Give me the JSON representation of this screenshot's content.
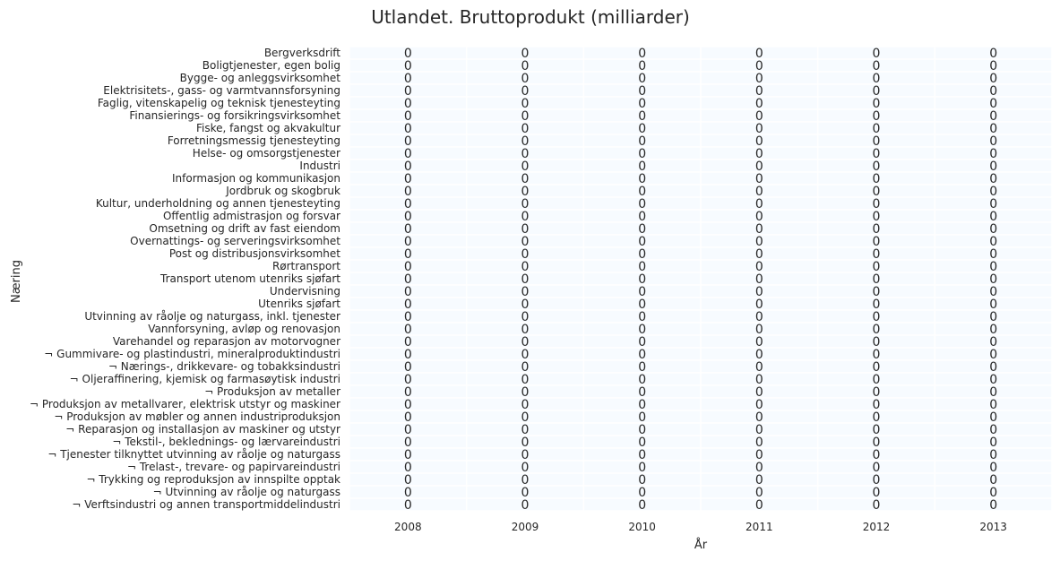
{
  "chart_data": {
    "type": "heatmap",
    "title": "Utlandet. Bruttoprodukt (milliarder)",
    "xlabel": "År",
    "ylabel": "Næring",
    "x": [
      "2008",
      "2009",
      "2010",
      "2011",
      "2012",
      "2013"
    ],
    "y": [
      "Bergverksdrift",
      "Boligtjenester, egen bolig",
      "Bygge- og anleggsvirksomhet",
      "Elektrisitets-, gass- og varmtvannsforsyning",
      "Faglig, vitenskapelig og teknisk tjenesteyting",
      "Finansierings- og forsikringsvirksomhet",
      "Fiske, fangst og akvakultur",
      "Forretningsmessig tjenesteyting",
      "Helse- og omsorgstjenester",
      "Industri",
      "Informasjon og kommunikasjon",
      "Jordbruk og skogbruk",
      "Kultur, underholdning og annen tjenesteyting",
      "Offentlig admistrasjon og forsvar",
      "Omsetning og drift av fast eiendom",
      "Overnattings- og serveringsvirksomhet",
      "Post og distribusjonsvirksomhet",
      "Rørtransport",
      "Transport utenom utenriks sjøfart",
      "Undervisning",
      "Utenriks sjøfart",
      "Utvinning av råolje og naturgass, inkl. tjenester",
      "Vannforsyning, avløp og renovasjon",
      "Varehandel og reparasjon av motorvogner",
      "¬ Gummivare- og plastindustri, mineralproduktindustri",
      "¬ Nærings-, drikkevare- og tobakksindustri",
      "¬ Oljeraffinering, kjemisk og farmasøytisk industri",
      "¬ Produksjon av metaller",
      "¬ Produksjon av metallvarer, elektrisk utstyr og maskiner",
      "¬ Produksjon av møbler og annen industriproduksjon",
      "¬ Reparasjon og installasjon av maskiner og utstyr",
      "¬ Tekstil-, beklednings- og lærvareindustri",
      "¬ Tjenester tilknyttet utvinning av råolje og naturgass",
      "¬ Trelast-, trevare- og papirvareindustri",
      "¬ Trykking og reproduksjon av innspilte opptak",
      "¬ Utvinning av råolje og naturgass",
      "¬ Verftsindustri og annen transportmiddelindustri"
    ],
    "values": [
      [
        0,
        0,
        0,
        0,
        0,
        0
      ],
      [
        0,
        0,
        0,
        0,
        0,
        0
      ],
      [
        0,
        0,
        0,
        0,
        0,
        0
      ],
      [
        0,
        0,
        0,
        0,
        0,
        0
      ],
      [
        0,
        0,
        0,
        0,
        0,
        0
      ],
      [
        0,
        0,
        0,
        0,
        0,
        0
      ],
      [
        0,
        0,
        0,
        0,
        0,
        0
      ],
      [
        0,
        0,
        0,
        0,
        0,
        0
      ],
      [
        0,
        0,
        0,
        0,
        0,
        0
      ],
      [
        0,
        0,
        0,
        0,
        0,
        0
      ],
      [
        0,
        0,
        0,
        0,
        0,
        0
      ],
      [
        0,
        0,
        0,
        0,
        0,
        0
      ],
      [
        0,
        0,
        0,
        0,
        0,
        0
      ],
      [
        0,
        0,
        0,
        0,
        0,
        0
      ],
      [
        0,
        0,
        0,
        0,
        0,
        0
      ],
      [
        0,
        0,
        0,
        0,
        0,
        0
      ],
      [
        0,
        0,
        0,
        0,
        0,
        0
      ],
      [
        0,
        0,
        0,
        0,
        0,
        0
      ],
      [
        0,
        0,
        0,
        0,
        0,
        0
      ],
      [
        0,
        0,
        0,
        0,
        0,
        0
      ],
      [
        0,
        0,
        0,
        0,
        0,
        0
      ],
      [
        0,
        0,
        0,
        0,
        0,
        0
      ],
      [
        0,
        0,
        0,
        0,
        0,
        0
      ],
      [
        0,
        0,
        0,
        0,
        0,
        0
      ],
      [
        0,
        0,
        0,
        0,
        0,
        0
      ],
      [
        0,
        0,
        0,
        0,
        0,
        0
      ],
      [
        0,
        0,
        0,
        0,
        0,
        0
      ],
      [
        0,
        0,
        0,
        0,
        0,
        0
      ],
      [
        0,
        0,
        0,
        0,
        0,
        0
      ],
      [
        0,
        0,
        0,
        0,
        0,
        0
      ],
      [
        0,
        0,
        0,
        0,
        0,
        0
      ],
      [
        0,
        0,
        0,
        0,
        0,
        0
      ],
      [
        0,
        0,
        0,
        0,
        0,
        0
      ],
      [
        0,
        0,
        0,
        0,
        0,
        0
      ],
      [
        0,
        0,
        0,
        0,
        0,
        0
      ],
      [
        0,
        0,
        0,
        0,
        0,
        0
      ],
      [
        0,
        0,
        0,
        0,
        0,
        0
      ]
    ],
    "annotations": "cell values shown",
    "colors": {
      "cell": "#f7fbff",
      "cell_gap": "#ffffff",
      "text": "#262626"
    },
    "legend": "none"
  }
}
